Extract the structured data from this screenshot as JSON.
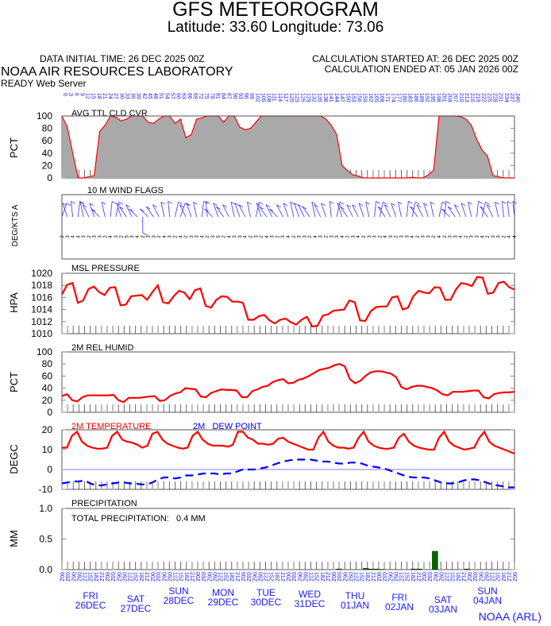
{
  "header": {
    "title": "GFS METEOROGRAM",
    "subtitle": "Latitude: 33.60 Longitude:  73.06",
    "data_initial_time": "DATA INITIAL TIME: 26 DEC 2025 00Z",
    "calc_started": "CALCULATION STARTED AT: 26 DEC 2025 00Z",
    "calc_ended": "CALCULATION ENDED AT: 05 JAN 2026 00Z",
    "organization": "NOAA AIR RESOURCES LABORATORY",
    "server": "READY Web Server",
    "credit": "NOAA (ARL)"
  },
  "colors": {
    "temperature": "#ff0000",
    "dewpoint": "#0000ff",
    "cloud_fill": "#a9a9a9",
    "precip": "#006400",
    "axis_labels": "#1a1aff"
  },
  "chart_data": [
    {
      "type": "area",
      "title": "AVG TTL CLD CVR",
      "ylabel": "PCT",
      "ylim": [
        0,
        100
      ],
      "yticks": [
        "0",
        "20",
        "40",
        "60",
        "80",
        "100"
      ],
      "x_hours_step": 3,
      "values": [
        100,
        82,
        40,
        0,
        0,
        2,
        4,
        75,
        85,
        100,
        98,
        92,
        95,
        100,
        100,
        100,
        90,
        88,
        95,
        100,
        100,
        88,
        95,
        65,
        70,
        95,
        97,
        100,
        100,
        100,
        90,
        100,
        100,
        82,
        78,
        80,
        90,
        100,
        100,
        100,
        100,
        100,
        100,
        100,
        100,
        100,
        100,
        100,
        100,
        95,
        85,
        70,
        20,
        12,
        5,
        3,
        0,
        0,
        0,
        0,
        0,
        0,
        0,
        0,
        0,
        1,
        0,
        0,
        5,
        12,
        100,
        100,
        100,
        100,
        99,
        95,
        85,
        62,
        45,
        35,
        4,
        2,
        0,
        0,
        0
      ]
    },
    {
      "type": "wind",
      "title": "10 M  WIND FLAGS",
      "ylabel": "DEG/KTS  A",
      "speeds": [
        2,
        3,
        4,
        4,
        3,
        2,
        3,
        3,
        2,
        4,
        3,
        2,
        5,
        3,
        4,
        2,
        3,
        3,
        2,
        4,
        3,
        2,
        4,
        2,
        3,
        3,
        4,
        2,
        3,
        5,
        2,
        4,
        3,
        3,
        4,
        2,
        3,
        2,
        4,
        3,
        2,
        3,
        4,
        2,
        3,
        3,
        2,
        4,
        3,
        2,
        3,
        3,
        4,
        2,
        3,
        4,
        2,
        3,
        3,
        2,
        4,
        3,
        2,
        3,
        3,
        4,
        2,
        3,
        3,
        2,
        4,
        2,
        3,
        3,
        4,
        2,
        3,
        3,
        4,
        2,
        3,
        3,
        2,
        4,
        4
      ],
      "directions": [
        30,
        330,
        350,
        10,
        340,
        320,
        330,
        300,
        340,
        10,
        20,
        330,
        310,
        320,
        300,
        180,
        300,
        310,
        320,
        340,
        350,
        20,
        30,
        320,
        330,
        340,
        10,
        350,
        300,
        330,
        310,
        320,
        340,
        330,
        320,
        340,
        20,
        330,
        310,
        320,
        300,
        320,
        330,
        340,
        330,
        320,
        310,
        340,
        320,
        330,
        350,
        20,
        330,
        310,
        320,
        320,
        330,
        340,
        10,
        20,
        310,
        320,
        330,
        340,
        10,
        20,
        310,
        320,
        330,
        340,
        20,
        10,
        300,
        310,
        320,
        330,
        340,
        10,
        20,
        310,
        320,
        340,
        350,
        350,
        350
      ]
    },
    {
      "type": "line",
      "title": "MSL PRESSURE",
      "ylabel": "HPA",
      "ylim": [
        1010,
        1020
      ],
      "yticks": [
        "1010",
        "1012",
        "1014",
        "1016",
        "1018",
        "1020"
      ],
      "values": [
        1016.5,
        1018.1,
        1018.4,
        1015.1,
        1015.5,
        1017.4,
        1017.8,
        1016.9,
        1016.4,
        1017.6,
        1017.7,
        1014.7,
        1014.8,
        1016.2,
        1016.3,
        1016.4,
        1015.6,
        1016.9,
        1018.0,
        1015.2,
        1015.0,
        1016.2,
        1017.1,
        1016.8,
        1015.7,
        1017.2,
        1017.5,
        1014.6,
        1014.3,
        1015.6,
        1016.2,
        1016.1,
        1015.3,
        1015.3,
        1015.1,
        1012.3,
        1012.3,
        1012.9,
        1013.1,
        1012.2,
        1011.7,
        1012.3,
        1012.5,
        1011.9,
        1011.5,
        1012.3,
        1012.8,
        1011.2,
        1011.3,
        1013.0,
        1013.2,
        1013.8,
        1013.9,
        1014.0,
        1015.5,
        1015.2,
        1012.2,
        1012.1,
        1013.7,
        1014.4,
        1014.5,
        1014.5,
        1016.0,
        1016.2,
        1014.0,
        1014.3,
        1016.2,
        1017.1,
        1016.8,
        1016.7,
        1017.7,
        1017.6,
        1015.6,
        1015.6,
        1017.3,
        1018.4,
        1018.2,
        1017.9,
        1019.4,
        1019.3,
        1016.6,
        1016.8,
        1018.4,
        1018.6,
        1017.7,
        1017.3
      ]
    },
    {
      "type": "line",
      "title": "2M REL HUMID",
      "ylabel": "PCT",
      "ylim": [
        0,
        100
      ],
      "yticks": [
        "0",
        "20",
        "40",
        "60",
        "80",
        "100"
      ],
      "values": [
        27,
        30,
        20,
        18,
        25,
        28,
        28,
        28,
        28,
        28,
        29,
        20,
        17,
        24,
        24,
        24,
        25,
        26,
        27,
        19,
        20,
        27,
        31,
        33,
        40,
        39,
        38,
        26,
        25,
        32,
        35,
        38,
        37,
        37,
        36,
        25,
        25,
        35,
        38,
        42,
        44,
        50,
        53,
        55,
        48,
        49,
        54,
        56,
        60,
        65,
        70,
        72,
        74,
        78,
        80,
        76,
        55,
        48,
        52,
        60,
        66,
        68,
        68,
        66,
        64,
        58,
        42,
        38,
        42,
        44,
        44,
        42,
        40,
        36,
        30,
        28,
        34,
        34,
        34,
        35,
        36,
        36,
        25,
        23,
        30,
        32,
        33,
        33,
        34
      ]
    },
    {
      "type": "line",
      "title": "",
      "series_labels": [
        "2M TEMPERATURE",
        "2M   DEW POINT"
      ],
      "ylabel": "DEGC",
      "ylim": [
        -10,
        20
      ],
      "yticks": [
        "-10",
        "0",
        "10",
        "20"
      ],
      "series": [
        {
          "name": "2M TEMPERATURE",
          "values": [
            11,
            11,
            17,
            19,
            14,
            12,
            11,
            10.5,
            10.5,
            11,
            17,
            19,
            15,
            14,
            13.5,
            12.5,
            11,
            12,
            18,
            19,
            15,
            13,
            12,
            11,
            10.5,
            11,
            17,
            19,
            15,
            13,
            12,
            12,
            12,
            11.5,
            12.5,
            19,
            19,
            16,
            15,
            13,
            13,
            12.5,
            13,
            15.5,
            16,
            14,
            13,
            12,
            11,
            10,
            10,
            16,
            19,
            14,
            12,
            11,
            11,
            10.5,
            11,
            16,
            19,
            14,
            12,
            11,
            10.5,
            10.5,
            11,
            16,
            18,
            14,
            12,
            11,
            10.5,
            10,
            10,
            16,
            19,
            14,
            12,
            11,
            10,
            10.5,
            11,
            16,
            19,
            14,
            12,
            11,
            10,
            9,
            8
          ]
        },
        {
          "name": "2M   DEW POINT",
          "values": [
            -7,
            -6.5,
            -6,
            -6,
            -5.5,
            -7,
            -8,
            -8,
            -7.5,
            -7,
            -6.5,
            -6.5,
            -7,
            -7,
            -7.5,
            -7.5,
            -6.5,
            -5,
            -4,
            -4,
            -4.5,
            -4,
            -3,
            -3,
            -2.5,
            -2,
            -2,
            -2,
            -2.5,
            -2,
            -2,
            -1,
            0,
            0,
            0,
            0.5,
            1,
            2,
            3,
            4,
            4.5,
            5,
            5,
            5,
            5,
            4.5,
            4,
            4,
            3.5,
            3,
            3,
            3.5,
            3.5,
            3,
            2,
            1.5,
            1,
            0.5,
            -0.5,
            -1.5,
            -2.5,
            -3.5,
            -4,
            -4,
            -4,
            -4.5,
            -5.5,
            -6.5,
            -7,
            -7,
            -6.5,
            -5.5,
            -5,
            -5,
            -5.5,
            -6.5,
            -7.5,
            -8,
            -8.5,
            -9,
            -9
          ]
        }
      ]
    },
    {
      "type": "bar",
      "title": "PRECIPITATION",
      "annotation": "TOTAL PRECIPITATION:   0.4 MM",
      "ylabel": "MM",
      "ylim": [
        0,
        1.0
      ],
      "yticks": [
        "0.0",
        "0.5",
        "1.0"
      ],
      "values": [
        0,
        0,
        0,
        0,
        0,
        0,
        0,
        0,
        0,
        0,
        0,
        0,
        0,
        0,
        0,
        0,
        0,
        0,
        0,
        0,
        0,
        0,
        0,
        0,
        0,
        0,
        0,
        0,
        0,
        0,
        0,
        0,
        0,
        0,
        0,
        0,
        0,
        0,
        0,
        0,
        0,
        0,
        0,
        0,
        0,
        0,
        0,
        0,
        0,
        0,
        0,
        0,
        0.01,
        0,
        0,
        0,
        0,
        0.02,
        0.01,
        0.01,
        0.005,
        0,
        0,
        0,
        0,
        0,
        0.01,
        0.01,
        0,
        0,
        0.3,
        0,
        0,
        0,
        0,
        0,
        0.01,
        0,
        0,
        0,
        0,
        0,
        0,
        0,
        0,
        0
      ]
    }
  ],
  "x_axis": {
    "hour_labels_top": [
      "0",
      "3",
      "6",
      "9",
      "12",
      "15",
      "18",
      "21",
      "24",
      "27",
      "30",
      "33",
      "36",
      "39",
      "42",
      "45",
      "48",
      "51",
      "54",
      "57",
      "60",
      "63",
      "66",
      "69",
      "72",
      "75",
      "78",
      "81",
      "84",
      "87",
      "90",
      "93",
      "96",
      "99",
      "102",
      "105",
      "108",
      "111",
      "114",
      "117",
      "120",
      "123",
      "126",
      "129",
      "132",
      "135",
      "138",
      "141",
      "144",
      "147",
      "150",
      "153",
      "156",
      "159",
      "162",
      "165",
      "168",
      "171",
      "174",
      "177",
      "180",
      "183",
      "186",
      "189",
      "192",
      "195",
      "198",
      "201",
      "204",
      "207",
      "210",
      "213",
      "216",
      "219",
      "222",
      "225",
      "228",
      "231",
      "234",
      "237",
      "240"
    ],
    "utc_labels": [
      "00Z",
      "03Z",
      "06Z",
      "09Z",
      "12Z",
      "15Z",
      "18Z",
      "21Z"
    ],
    "days": [
      {
        "dow": "FRI",
        "date": "26DEC"
      },
      {
        "dow": "SAT",
        "date": "27DEC"
      },
      {
        "dow": "SUN",
        "date": "28DEC"
      },
      {
        "dow": "MON",
        "date": "29DEC"
      },
      {
        "dow": "TUE",
        "date": "30DEC"
      },
      {
        "dow": "WED",
        "date": "31DEC"
      },
      {
        "dow": "THU",
        "date": "01JAN"
      },
      {
        "dow": "FRI",
        "date": "02JAN"
      },
      {
        "dow": "SAT",
        "date": "03JAN"
      },
      {
        "dow": "SUN",
        "date": "04JAN"
      }
    ]
  }
}
